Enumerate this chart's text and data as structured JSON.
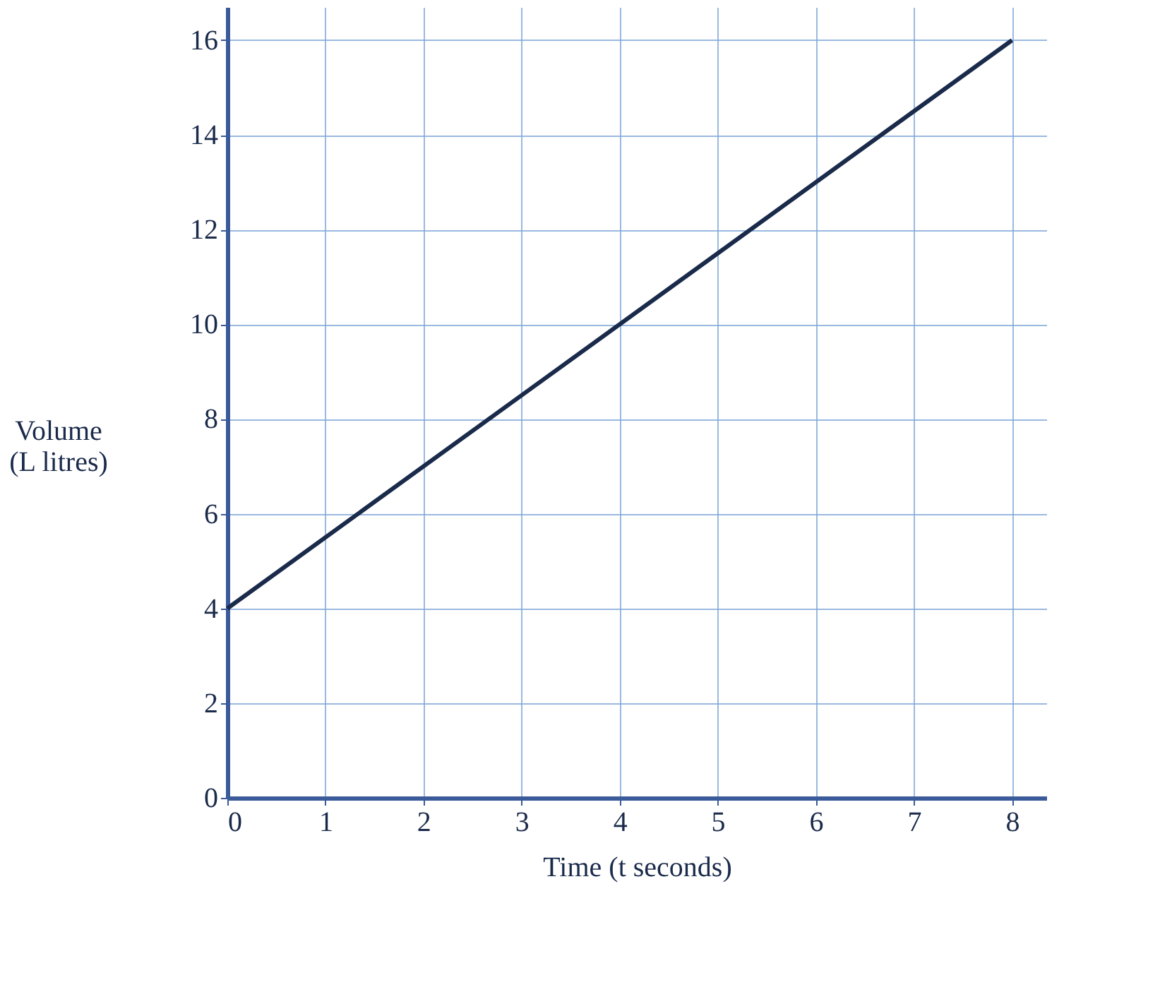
{
  "chart_data": {
    "type": "line",
    "xlabel": "Time (t seconds)",
    "ylabel": "Volume (L litres)",
    "x": [
      0,
      8
    ],
    "series": [
      {
        "color": "#1a2a4a",
        "values": [
          4,
          16
        ]
      }
    ],
    "xlim": [
      0,
      8.35
    ],
    "ylim": [
      0,
      16.7
    ],
    "xticks": [
      0,
      1,
      2,
      3,
      4,
      5,
      6,
      7,
      8
    ],
    "yticks": [
      0,
      2,
      4,
      6,
      8,
      10,
      12,
      14,
      16
    ],
    "grid": true,
    "marker": "none",
    "line_style": "solid"
  }
}
